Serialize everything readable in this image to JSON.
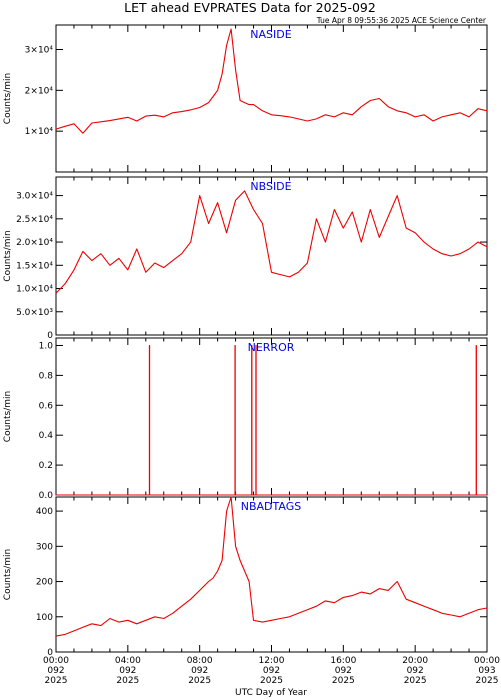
{
  "header": {
    "title": "LET ahead EVPRATES Data for 2025-092",
    "timestamp": "Tue Apr  8 09:55:36 2025 ACE Science Center"
  },
  "x_axis": {
    "label": "UTC Day of Year",
    "ticks": [
      {
        "time": "00:00",
        "day": "092",
        "year": "2025"
      },
      {
        "time": "04:00",
        "day": "092",
        "year": "2025"
      },
      {
        "time": "08:00",
        "day": "092",
        "year": "2025"
      },
      {
        "time": "12:00",
        "day": "092",
        "year": "2025"
      },
      {
        "time": "16:00",
        "day": "092",
        "year": "2025"
      },
      {
        "time": "20:00",
        "day": "092",
        "year": "2025"
      },
      {
        "time": "00:00",
        "day": "093",
        "year": "2025"
      }
    ]
  },
  "colors": {
    "series": "#ee0000",
    "panel_label": "#0000ee",
    "axes": "#000000"
  },
  "chart_data": [
    {
      "type": "line",
      "name": "NASIDE",
      "ylabel": "Counts/min",
      "ylim": [
        0,
        36000
      ],
      "ytick_values": [
        10000,
        20000,
        30000
      ],
      "ytick_labels": [
        "1×10⁴",
        "2×10⁴",
        "3×10⁴"
      ],
      "x": [
        0,
        0.5,
        1,
        1.5,
        2,
        2.5,
        3,
        3.5,
        4,
        4.5,
        5,
        5.5,
        6,
        6.5,
        7,
        7.5,
        8,
        8.5,
        8.75,
        9,
        9.25,
        9.5,
        9.75,
        10,
        10.25,
        10.5,
        10.75,
        11,
        11.5,
        12,
        12.5,
        13,
        13.5,
        14,
        14.5,
        15,
        15.5,
        16,
        16.5,
        17,
        17.5,
        18,
        18.5,
        19,
        19.5,
        20,
        20.5,
        21,
        21.5,
        22,
        22.5,
        23,
        23.5,
        24
      ],
      "y": [
        10500,
        11200,
        11800,
        9500,
        12000,
        12300,
        12600,
        13000,
        13400,
        12500,
        13700,
        13900,
        13500,
        14500,
        14800,
        15200,
        15800,
        17000,
        18500,
        20000,
        24000,
        31000,
        35000,
        25000,
        17500,
        17000,
        16500,
        16500,
        15000,
        14000,
        13800,
        13500,
        13000,
        12500,
        13000,
        14000,
        13500,
        14500,
        14000,
        16000,
        17500,
        18000,
        16000,
        15000,
        14500,
        13500,
        14000,
        12500,
        13500,
        14000,
        14500,
        13500,
        15500,
        15000
      ]
    },
    {
      "type": "line",
      "name": "NBSIDE",
      "ylabel": "Counts/min",
      "ylim": [
        0,
        34000
      ],
      "ytick_values": [
        0,
        5000,
        10000,
        15000,
        20000,
        25000,
        30000
      ],
      "ytick_labels": [
        "0",
        "5.0×10³",
        "1.0×10⁴",
        "1.5×10⁴",
        "2.0×10⁴",
        "2.5×10⁴",
        "3.0×10⁴"
      ],
      "x": [
        0,
        0.5,
        1,
        1.5,
        2,
        2.5,
        3,
        3.5,
        4,
        4.5,
        5,
        5.5,
        6,
        6.5,
        7,
        7.5,
        8,
        8.5,
        9,
        9.5,
        10,
        10.5,
        11,
        11.5,
        12,
        12.5,
        13,
        13.5,
        14,
        14.5,
        15,
        15.5,
        16,
        16.5,
        17,
        17.5,
        18,
        18.5,
        19,
        19.5,
        20,
        20.5,
        21,
        21.5,
        22,
        22.5,
        23,
        23.5,
        24
      ],
      "y": [
        9000,
        11000,
        14000,
        18000,
        16000,
        17500,
        15000,
        16500,
        14000,
        18500,
        13500,
        15500,
        14500,
        16000,
        17500,
        20000,
        30000,
        24000,
        28500,
        22000,
        29000,
        31000,
        27000,
        24000,
        13500,
        13000,
        12500,
        13500,
        15500,
        25000,
        20000,
        27000,
        23000,
        26500,
        20000,
        27000,
        21000,
        25500,
        30000,
        23000,
        22000,
        20000,
        18500,
        17500,
        17000,
        17500,
        18500,
        20000,
        19000
      ]
    },
    {
      "type": "line",
      "name": "NERROR",
      "ylabel": "Counts/min",
      "ylim": [
        0,
        1.05
      ],
      "ytick_values": [
        0,
        0.2,
        0.4,
        0.6,
        0.8,
        1.0
      ],
      "ytick_labels": [
        "0.0",
        "0.2",
        "0.4",
        "0.6",
        "0.8",
        "1.0"
      ],
      "x": [
        0,
        5.2,
        5.2,
        5.21,
        5.21,
        9.97,
        9.97,
        9.98,
        9.98,
        10.9,
        10.9,
        10.91,
        10.91,
        11.13,
        11.13,
        11.14,
        11.14,
        23.4,
        23.4,
        23.41,
        23.41,
        24
      ],
      "y": [
        0,
        0,
        1,
        1,
        0,
        0,
        1,
        1,
        0,
        0,
        1,
        1,
        0,
        0,
        1,
        1,
        0,
        0,
        1,
        1,
        0,
        0
      ]
    },
    {
      "type": "line",
      "name": "NBADTAGS",
      "ylabel": "Counts/min",
      "ylim": [
        0,
        440
      ],
      "ytick_values": [
        0,
        100,
        200,
        300,
        400
      ],
      "ytick_labels": [
        "0",
        "100",
        "200",
        "300",
        "400"
      ],
      "x": [
        0,
        0.5,
        1,
        1.5,
        2,
        2.5,
        3,
        3.5,
        4,
        4.5,
        5,
        5.5,
        6,
        6.5,
        7,
        7.5,
        8,
        8.5,
        8.75,
        9,
        9.25,
        9.5,
        9.75,
        10,
        10.25,
        10.5,
        10.75,
        11,
        11.5,
        12,
        12.5,
        13,
        13.5,
        14,
        14.5,
        15,
        15.5,
        16,
        16.5,
        17,
        17.5,
        18,
        18.5,
        19,
        19.5,
        20,
        20.5,
        21,
        21.5,
        22,
        22.5,
        23,
        23.5,
        24
      ],
      "y": [
        45,
        50,
        60,
        70,
        80,
        75,
        95,
        85,
        90,
        80,
        90,
        100,
        95,
        110,
        130,
        150,
        175,
        200,
        210,
        230,
        260,
        400,
        440,
        300,
        260,
        230,
        200,
        90,
        85,
        90,
        95,
        100,
        110,
        120,
        130,
        145,
        140,
        155,
        160,
        170,
        165,
        180,
        175,
        200,
        150,
        140,
        130,
        120,
        110,
        105,
        100,
        110,
        120,
        125
      ]
    }
  ]
}
